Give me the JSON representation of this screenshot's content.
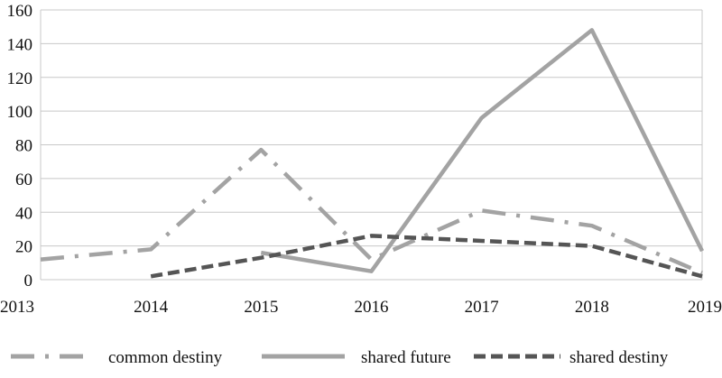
{
  "chart_data": {
    "type": "line",
    "title": "",
    "xlabel": "",
    "ylabel": "",
    "x": [
      "2013",
      "2014",
      "2015",
      "2016",
      "2017",
      "2018",
      "2019"
    ],
    "ylim": [
      0,
      160
    ],
    "yticks": [
      0,
      20,
      40,
      60,
      80,
      100,
      120,
      140,
      160
    ],
    "grid": "horizontal",
    "legend_position": "bottom",
    "series": [
      {
        "name": "common destiny",
        "style": "dash-dot",
        "color": "#a3a3a3",
        "values": [
          12,
          18,
          77,
          12,
          41,
          32,
          4
        ]
      },
      {
        "name": "shared future",
        "style": "solid",
        "color": "#a3a3a3",
        "values": [
          null,
          null,
          16,
          5,
          96,
          148,
          17
        ]
      },
      {
        "name": "shared destiny",
        "style": "dashed",
        "color": "#555555",
        "values": [
          null,
          2,
          13,
          26,
          23,
          20,
          2
        ]
      }
    ]
  }
}
